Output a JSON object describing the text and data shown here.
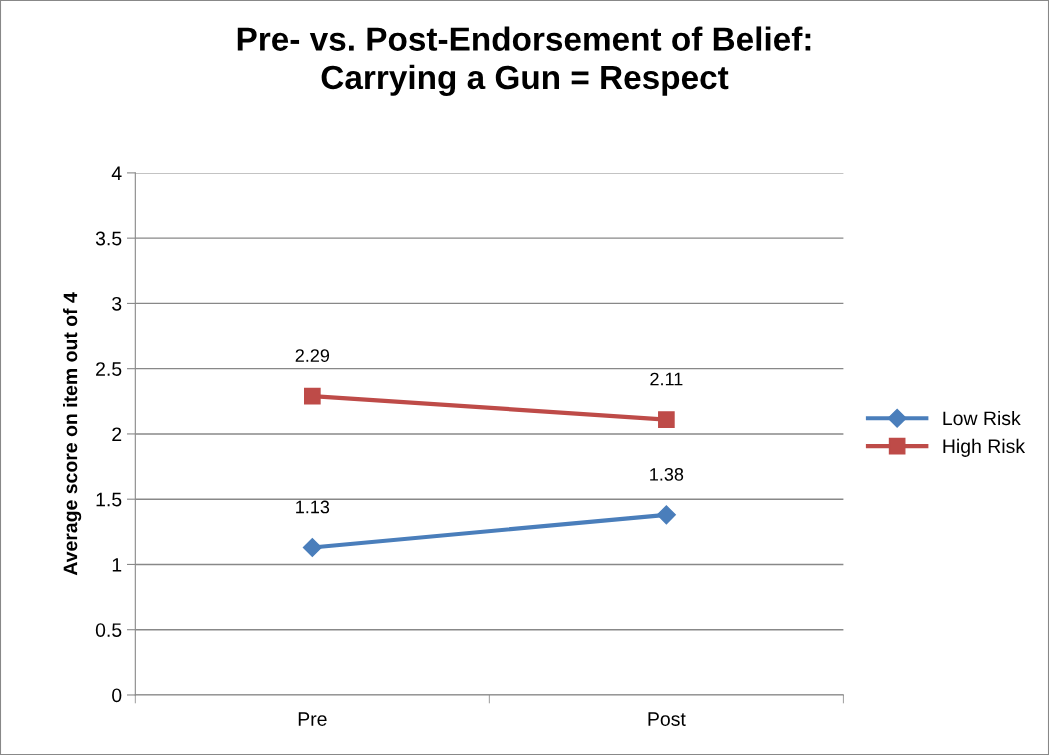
{
  "chart_data": {
    "type": "line",
    "title": "Pre- vs. Post-Endorsement of Belief:\nCarrying a Gun = Respect",
    "ylabel": "Average score on item out of 4",
    "categories": [
      "Pre",
      "Post"
    ],
    "series": [
      {
        "name": "Low Risk",
        "color": "#4a7ebb",
        "values": [
          1.13,
          1.38
        ],
        "marker": "diamond"
      },
      {
        "name": "High Risk",
        "color": "#be4b48",
        "values": [
          2.29,
          2.11
        ],
        "marker": "square"
      }
    ],
    "ylim": [
      0,
      4
    ],
    "yticks": [
      0,
      0.5,
      1,
      1.5,
      2,
      2.5,
      3,
      3.5,
      4
    ],
    "grid": "y",
    "legend": "right",
    "data_labels": true,
    "line_style": "solid"
  }
}
